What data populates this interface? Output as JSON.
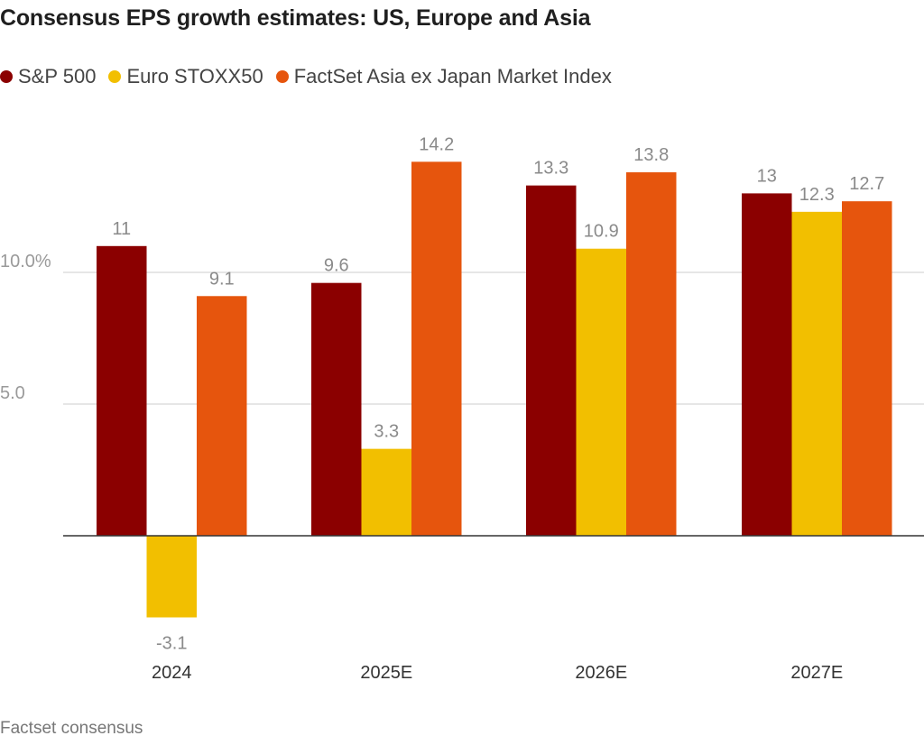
{
  "title": "Consensus EPS growth estimates: US, Europe and Asia",
  "source": "Factset consensus",
  "colors": {
    "sp500": "#8b0000",
    "euro_stoxx50": "#f2bf00",
    "factset_asia": "#e6550d",
    "grid": "#cccccc",
    "zero_line": "#333333"
  },
  "chart_data": {
    "type": "bar",
    "title": "Consensus EPS growth estimates: US, Europe and Asia",
    "categories": [
      "2024",
      "2025E",
      "2026E",
      "2027E"
    ],
    "series": [
      {
        "name": "S&P 500",
        "color_key": "sp500",
        "values": [
          11,
          9.6,
          13.3,
          13
        ]
      },
      {
        "name": "Euro STOXX50",
        "color_key": "euro_stoxx50",
        "values": [
          -3.1,
          3.3,
          10.9,
          12.3
        ]
      },
      {
        "name": "FactSet Asia ex Japan Market Index",
        "color_key": "factset_asia",
        "values": [
          9.1,
          14.2,
          13.8,
          12.7
        ]
      }
    ],
    "value_labels": [
      [
        "11",
        "9.6",
        "13.3",
        "13"
      ],
      [
        "-3.1",
        "3.3",
        "10.9",
        "12.3"
      ],
      [
        "9.1",
        "14.2",
        "13.8",
        "12.7"
      ]
    ],
    "yticks": [
      {
        "value": 5,
        "label": "5.0"
      },
      {
        "value": 10,
        "label": "10.0%"
      }
    ],
    "ylim": [
      -3.1,
      15
    ],
    "grid": true,
    "legend_position": "top-left",
    "xlabel": "",
    "ylabel": ""
  }
}
